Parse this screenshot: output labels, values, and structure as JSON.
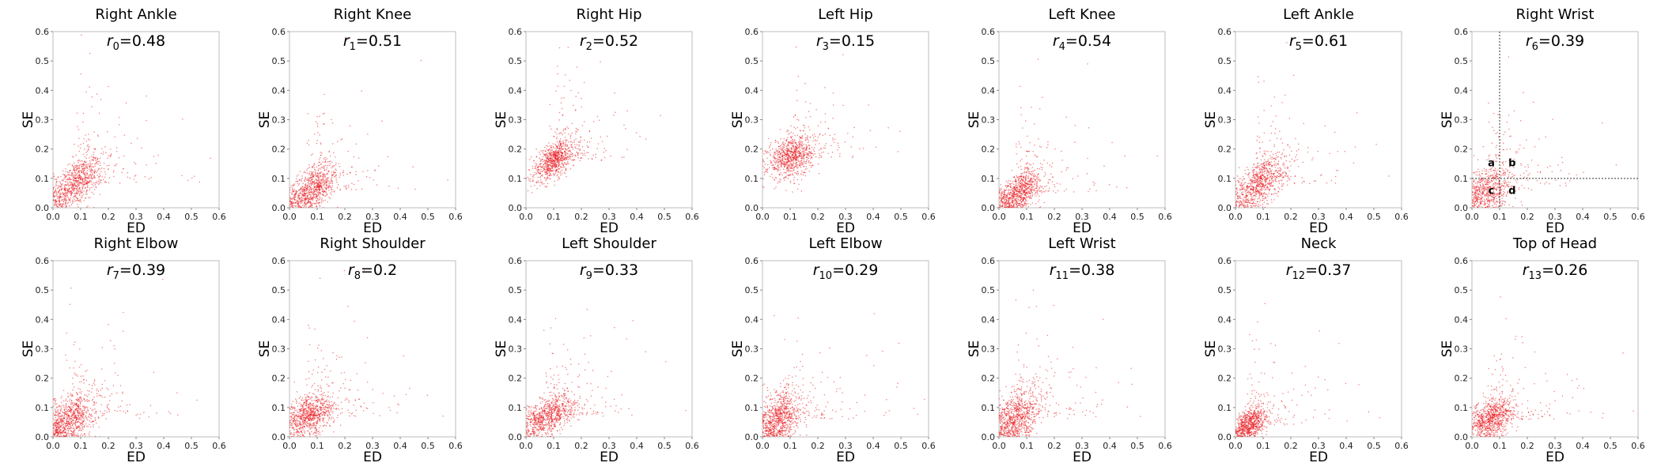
{
  "colors": {
    "points": "#e8141a",
    "frame": "#bdbdbd"
  },
  "chart_data": [
    {
      "type": "scatter",
      "title": "Right Ankle",
      "r_symbol": "r",
      "r_sub": "0",
      "r_value": "0.48",
      "xlabel": "ED",
      "ylabel": "SE",
      "xlim": [
        0,
        0.6
      ],
      "ylim": [
        0,
        0.6
      ],
      "xticks": [
        "0.0",
        "0.1",
        "0.2",
        "0.3",
        "0.4",
        "0.5",
        "0.6"
      ],
      "yticks": [
        "0.0",
        "0.1",
        "0.2",
        "0.3",
        "0.4",
        "0.5",
        "0.6"
      ],
      "cluster": {
        "mx": 0.08,
        "my": 0.08,
        "sx": 0.05,
        "sy": 0.045,
        "rho": 0.55
      },
      "n_points": 900
    },
    {
      "type": "scatter",
      "title": "Right Knee",
      "r_symbol": "r",
      "r_sub": "1",
      "r_value": "0.51",
      "xlabel": "ED",
      "ylabel": "SE",
      "xlim": [
        0,
        0.6
      ],
      "ylim": [
        0,
        0.6
      ],
      "xticks": [
        "0.0",
        "0.1",
        "0.2",
        "0.3",
        "0.4",
        "0.5",
        "0.6"
      ],
      "yticks": [
        "0.0",
        "0.1",
        "0.2",
        "0.3",
        "0.4",
        "0.5",
        "0.6"
      ],
      "cluster": {
        "mx": 0.08,
        "my": 0.06,
        "sx": 0.045,
        "sy": 0.04,
        "rho": 0.5
      },
      "n_points": 900
    },
    {
      "type": "scatter",
      "title": "Right Hip",
      "r_symbol": "r",
      "r_sub": "2",
      "r_value": "0.52",
      "xlabel": "ED",
      "ylabel": "SE",
      "xlim": [
        0,
        0.6
      ],
      "ylim": [
        0,
        0.6
      ],
      "xticks": [
        "0.0",
        "0.1",
        "0.2",
        "0.3",
        "0.4",
        "0.5",
        "0.6"
      ],
      "yticks": [
        "0.0",
        "0.1",
        "0.2",
        "0.3",
        "0.4",
        "0.5",
        "0.6"
      ],
      "cluster": {
        "mx": 0.1,
        "my": 0.16,
        "sx": 0.04,
        "sy": 0.035,
        "rho": 0.55
      },
      "n_points": 900
    },
    {
      "type": "scatter",
      "title": "Left Hip",
      "r_symbol": "r",
      "r_sub": "3",
      "r_value": "0.15",
      "xlabel": "ED",
      "ylabel": "SE",
      "xlim": [
        0,
        0.6
      ],
      "ylim": [
        0,
        0.6
      ],
      "xticks": [
        "0.0",
        "0.1",
        "0.2",
        "0.3",
        "0.4",
        "0.5",
        "0.6"
      ],
      "yticks": [
        "0.0",
        "0.1",
        "0.2",
        "0.3",
        "0.4",
        "0.5",
        "0.6"
      ],
      "cluster": {
        "mx": 0.1,
        "my": 0.17,
        "sx": 0.04,
        "sy": 0.035,
        "rho": 0.2
      },
      "n_points": 900
    },
    {
      "type": "scatter",
      "title": "Left Knee",
      "r_symbol": "r",
      "r_sub": "4",
      "r_value": "0.54",
      "xlabel": "ED",
      "ylabel": "SE",
      "xlim": [
        0,
        0.6
      ],
      "ylim": [
        0,
        0.6
      ],
      "xticks": [
        "0.0",
        "0.1",
        "0.2",
        "0.3",
        "0.4",
        "0.5",
        "0.6"
      ],
      "yticks": [
        "0.0",
        "0.1",
        "0.2",
        "0.3",
        "0.4",
        "0.5",
        "0.6"
      ],
      "cluster": {
        "mx": 0.07,
        "my": 0.05,
        "sx": 0.04,
        "sy": 0.04,
        "rho": 0.55
      },
      "n_points": 900
    },
    {
      "type": "scatter",
      "title": "Left Ankle",
      "r_symbol": "r",
      "r_sub": "5",
      "r_value": "0.61",
      "xlabel": "ED",
      "ylabel": "SE",
      "xlim": [
        0,
        0.6
      ],
      "ylim": [
        0,
        0.6
      ],
      "xticks": [
        "0.0",
        "0.1",
        "0.2",
        "0.3",
        "0.4",
        "0.5",
        "0.6"
      ],
      "yticks": [
        "0.0",
        "0.1",
        "0.2",
        "0.3",
        "0.4",
        "0.5",
        "0.6"
      ],
      "cluster": {
        "mx": 0.08,
        "my": 0.08,
        "sx": 0.05,
        "sy": 0.05,
        "rho": 0.6
      },
      "n_points": 900
    },
    {
      "type": "scatter",
      "title": "Right Wrist",
      "r_symbol": "r",
      "r_sub": "6",
      "r_value": "0.39",
      "xlabel": "ED",
      "ylabel": "SE",
      "xlim": [
        0,
        0.6
      ],
      "ylim": [
        0,
        0.6
      ],
      "xticks": [
        "0.0",
        "0.1",
        "0.2",
        "0.3",
        "0.4",
        "0.5",
        "0.6"
      ],
      "yticks": [
        "0.0",
        "0.1",
        "0.2",
        "0.3",
        "0.4",
        "0.5",
        "0.6"
      ],
      "cluster": {
        "mx": 0.06,
        "my": 0.06,
        "sx": 0.045,
        "sy": 0.045,
        "rho": 0.4
      },
      "n_points": 700,
      "regions": {
        "a": "a",
        "b": "b",
        "c": "c",
        "d": "d",
        "threshold_x": 0.1,
        "threshold_y": 0.1
      }
    },
    {
      "type": "scatter",
      "title": "Right Elbow",
      "r_symbol": "r",
      "r_sub": "7",
      "r_value": "0.39",
      "xlabel": "ED",
      "ylabel": "SE",
      "xlim": [
        0,
        0.6
      ],
      "ylim": [
        0,
        0.6
      ],
      "xticks": [
        "0.0",
        "0.1",
        "0.2",
        "0.3",
        "0.4",
        "0.5",
        "0.6"
      ],
      "yticks": [
        "0.0",
        "0.1",
        "0.2",
        "0.3",
        "0.4",
        "0.5",
        "0.6"
      ],
      "cluster": {
        "mx": 0.06,
        "my": 0.06,
        "sx": 0.045,
        "sy": 0.045,
        "rho": 0.4
      },
      "n_points": 900
    },
    {
      "type": "scatter",
      "title": "Right Shoulder",
      "r_symbol": "r",
      "r_sub": "8",
      "r_value": "0.2",
      "xlabel": "ED",
      "ylabel": "SE",
      "xlim": [
        0,
        0.6
      ],
      "ylim": [
        0,
        0.6
      ],
      "xticks": [
        "0.0",
        "0.1",
        "0.2",
        "0.3",
        "0.4",
        "0.5",
        "0.6"
      ],
      "yticks": [
        "0.0",
        "0.1",
        "0.2",
        "0.3",
        "0.4",
        "0.5",
        "0.6"
      ],
      "cluster": {
        "mx": 0.07,
        "my": 0.07,
        "sx": 0.045,
        "sy": 0.035,
        "rho": 0.3
      },
      "n_points": 900
    },
    {
      "type": "scatter",
      "title": "Left Shoulder",
      "r_symbol": "r",
      "r_sub": "9",
      "r_value": "0.33",
      "xlabel": "ED",
      "ylabel": "SE",
      "xlim": [
        0,
        0.6
      ],
      "ylim": [
        0,
        0.6
      ],
      "xticks": [
        "0.0",
        "0.1",
        "0.2",
        "0.3",
        "0.4",
        "0.5",
        "0.6"
      ],
      "yticks": [
        "0.0",
        "0.1",
        "0.2",
        "0.3",
        "0.4",
        "0.5",
        "0.6"
      ],
      "cluster": {
        "mx": 0.08,
        "my": 0.07,
        "sx": 0.05,
        "sy": 0.035,
        "rho": 0.45
      },
      "n_points": 900
    },
    {
      "type": "scatter",
      "title": "Left Elbow",
      "r_symbol": "r",
      "r_sub": "10",
      "r_value": "0.29",
      "xlabel": "ED",
      "ylabel": "SE",
      "xlim": [
        0,
        0.6
      ],
      "ylim": [
        0,
        0.6
      ],
      "xticks": [
        "0.0",
        "0.1",
        "0.2",
        "0.3",
        "0.4",
        "0.5",
        "0.6"
      ],
      "yticks": [
        "0.0",
        "0.1",
        "0.2",
        "0.3",
        "0.4",
        "0.5",
        "0.6"
      ],
      "cluster": {
        "mx": 0.06,
        "my": 0.06,
        "sx": 0.04,
        "sy": 0.05,
        "rho": 0.3
      },
      "n_points": 900
    },
    {
      "type": "scatter",
      "title": "Left Wrist",
      "r_symbol": "r",
      "r_sub": "11",
      "r_value": "0.38",
      "xlabel": "ED",
      "ylabel": "SE",
      "xlim": [
        0,
        0.6
      ],
      "ylim": [
        0,
        0.6
      ],
      "xticks": [
        "0.0",
        "0.1",
        "0.2",
        "0.3",
        "0.4",
        "0.5",
        "0.6"
      ],
      "yticks": [
        "0.0",
        "0.1",
        "0.2",
        "0.3",
        "0.4",
        "0.5",
        "0.6"
      ],
      "cluster": {
        "mx": 0.06,
        "my": 0.06,
        "sx": 0.045,
        "sy": 0.05,
        "rho": 0.4
      },
      "n_points": 900
    },
    {
      "type": "scatter",
      "title": "Neck",
      "r_symbol": "r",
      "r_sub": "12",
      "r_value": "0.37",
      "xlabel": "ED",
      "ylabel": "SE",
      "xlim": [
        0,
        0.6
      ],
      "ylim": [
        0,
        0.6
      ],
      "xticks": [
        "0.0",
        "0.1",
        "0.2",
        "0.3",
        "0.4",
        "0.5",
        "0.6"
      ],
      "yticks": [
        "0.0",
        "0.1",
        "0.2",
        "0.3",
        "0.4",
        "0.5",
        "0.6"
      ],
      "cluster": {
        "mx": 0.05,
        "my": 0.04,
        "sx": 0.03,
        "sy": 0.03,
        "rho": 0.4
      },
      "n_points": 800
    },
    {
      "type": "scatter",
      "title": "Top of Head",
      "r_symbol": "r",
      "r_sub": "13",
      "r_value": "0.26",
      "xlabel": "ED",
      "ylabel": "SE",
      "xlim": [
        0,
        0.6
      ],
      "ylim": [
        0,
        0.6
      ],
      "xticks": [
        "0.0",
        "0.1",
        "0.2",
        "0.3",
        "0.4",
        "0.5",
        "0.6"
      ],
      "yticks": [
        "0.0",
        "0.1",
        "0.2",
        "0.3",
        "0.4",
        "0.5",
        "0.6"
      ],
      "cluster": {
        "mx": 0.07,
        "my": 0.06,
        "sx": 0.04,
        "sy": 0.035,
        "rho": 0.3
      },
      "n_points": 900
    }
  ]
}
